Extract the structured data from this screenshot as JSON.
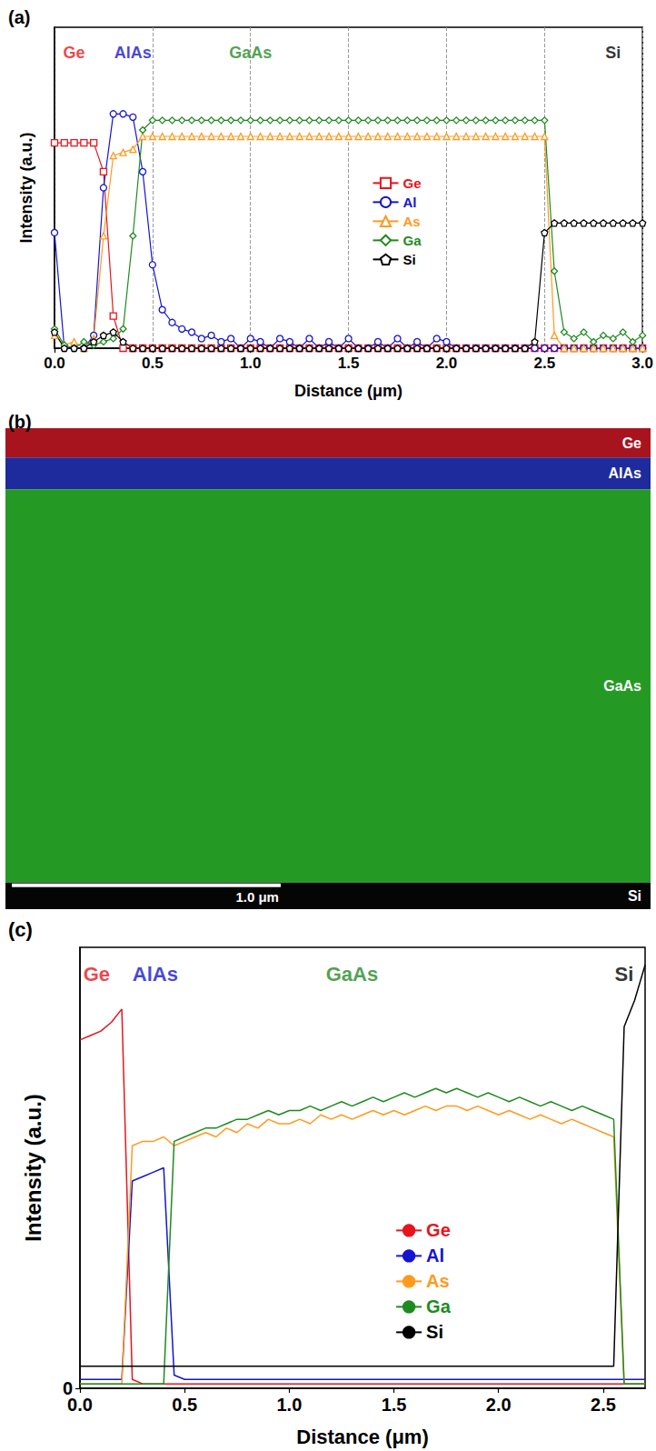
{
  "chart_data": [
    {
      "type": "line",
      "title": "(a)",
      "x_label": "Distance (μm)",
      "y_label": "Intensity (a.u.)",
      "xlim": [
        0,
        3.0
      ],
      "xticks": [
        {
          "value": 0,
          "label": "0.0"
        },
        {
          "value": 0.5,
          "label": "0.5"
        },
        {
          "value": 1,
          "label": "1.0"
        },
        {
          "value": 1.5,
          "label": "1.5"
        },
        {
          "value": 2,
          "label": "2.0"
        },
        {
          "value": 2.5,
          "label": "2.5"
        },
        {
          "value": 3,
          "label": "3.0"
        }
      ],
      "ylim": [
        0,
        1
      ],
      "tick_labels": "x",
      "grid": "x",
      "legend": "right",
      "annotations": [
        {
          "text": "Ge",
          "x": 0.1,
          "color": "#e8141c"
        },
        {
          "text": "AlAs",
          "x": 0.4,
          "color": "#1414d2"
        },
        {
          "text": "GaAs",
          "x": 1.0,
          "color": "#1f8a1f"
        },
        {
          "text": "Si",
          "x": 2.85,
          "color": "#000000"
        }
      ],
      "x": [
        0,
        0.05,
        0.1,
        0.15,
        0.2,
        0.25,
        0.3,
        0.35,
        0.4,
        0.45,
        0.5,
        0.55,
        0.6,
        0.65,
        0.7,
        0.75,
        0.8,
        0.85,
        0.9,
        0.95,
        1,
        1.05,
        1.1,
        1.15,
        1.2,
        1.25,
        1.3,
        1.35,
        1.4,
        1.45,
        1.5,
        1.55,
        1.6,
        1.65,
        1.7,
        1.75,
        1.8,
        1.85,
        1.9,
        1.95,
        2,
        2.05,
        2.1,
        2.15,
        2.2,
        2.25,
        2.3,
        2.35,
        2.4,
        2.45,
        2.5,
        2.55,
        2.6,
        2.65,
        2.7,
        2.75,
        2.8,
        2.85,
        2.9,
        2.95,
        3
      ],
      "series": [
        {
          "name": "Ge",
          "color": "#e8141c",
          "marker": "square",
          "values": [
            0.64,
            0.64,
            0.64,
            0.64,
            0.64,
            0.55,
            0.1,
            0,
            0,
            0,
            0,
            0,
            0,
            0,
            0,
            0,
            0,
            0,
            0,
            0,
            0,
            0,
            0,
            0,
            0,
            0,
            0,
            0,
            0,
            0,
            0,
            0,
            0,
            0,
            0,
            0,
            0,
            0,
            0,
            0,
            0,
            0,
            0,
            0,
            0,
            0,
            0,
            0,
            0,
            0,
            0,
            0,
            0,
            0,
            0,
            0,
            0,
            0,
            0,
            0,
            0
          ]
        },
        {
          "name": "Al",
          "color": "#1414d2",
          "marker": "circle",
          "values": [
            0.36,
            0,
            0,
            0,
            0.04,
            0.5,
            0.73,
            0.73,
            0.72,
            0.55,
            0.26,
            0.12,
            0.08,
            0.06,
            0.05,
            0.03,
            0.04,
            0.02,
            0.03,
            0,
            0.03,
            0.02,
            0,
            0.03,
            0.02,
            0,
            0.03,
            0,
            0.02,
            0,
            0.03,
            0,
            0,
            0.02,
            0,
            0.03,
            0,
            0.02,
            0,
            0.03,
            0.02,
            0,
            0,
            0,
            0,
            0,
            0,
            0,
            0,
            0,
            0,
            0,
            0,
            0,
            0,
            0,
            0,
            0,
            0,
            0,
            0
          ]
        },
        {
          "name": "As",
          "color": "#ff9a1e",
          "marker": "triangle",
          "values": [
            0.04,
            0.01,
            0.02,
            0,
            0.03,
            0.35,
            0.6,
            0.61,
            0.62,
            0.66,
            0.66,
            0.66,
            0.66,
            0.66,
            0.66,
            0.66,
            0.66,
            0.66,
            0.66,
            0.66,
            0.66,
            0.66,
            0.66,
            0.66,
            0.66,
            0.66,
            0.66,
            0.66,
            0.66,
            0.66,
            0.66,
            0.66,
            0.66,
            0.66,
            0.66,
            0.66,
            0.66,
            0.66,
            0.66,
            0.66,
            0.66,
            0.66,
            0.66,
            0.66,
            0.66,
            0.66,
            0.66,
            0.66,
            0.66,
            0.66,
            0.66,
            0.04,
            0,
            0,
            0,
            0,
            0,
            0,
            0,
            0,
            0
          ]
        },
        {
          "name": "Ga",
          "color": "#1f8a1f",
          "marker": "diamond",
          "values": [
            0.06,
            0.01,
            0,
            0.02,
            0.01,
            0.02,
            0.03,
            0.06,
            0.35,
            0.68,
            0.71,
            0.71,
            0.71,
            0.71,
            0.71,
            0.71,
            0.71,
            0.71,
            0.71,
            0.71,
            0.71,
            0.71,
            0.71,
            0.71,
            0.71,
            0.71,
            0.71,
            0.71,
            0.71,
            0.71,
            0.71,
            0.71,
            0.71,
            0.71,
            0.71,
            0.71,
            0.71,
            0.71,
            0.71,
            0.71,
            0.71,
            0.71,
            0.71,
            0.71,
            0.71,
            0.71,
            0.71,
            0.71,
            0.71,
            0.71,
            0.71,
            0.24,
            0.05,
            0.03,
            0.05,
            0.02,
            0.04,
            0.03,
            0.05,
            0.02,
            0.04
          ]
        },
        {
          "name": "Si",
          "color": "#000000",
          "marker": "pentagon",
          "values": [
            0.05,
            0,
            0,
            0,
            0.02,
            0.04,
            0.05,
            0.02,
            0,
            0,
            0,
            0,
            0,
            0,
            0,
            0,
            0,
            0,
            0,
            0,
            0,
            0,
            0,
            0,
            0,
            0,
            0,
            0,
            0,
            0,
            0,
            0,
            0,
            0,
            0,
            0,
            0,
            0,
            0,
            0,
            0,
            0,
            0,
            0,
            0,
            0,
            0,
            0,
            0,
            0.02,
            0.36,
            0.39,
            0.39,
            0.39,
            0.39,
            0.39,
            0.39,
            0.39,
            0.39,
            0.39,
            0.39
          ]
        }
      ]
    },
    {
      "type": "layers",
      "title": "(b)",
      "xlim": [
        0,
        2.4
      ],
      "ylim": [
        0,
        1.81
      ],
      "tick_labels": false,
      "bands": [
        {
          "label": "Ge",
          "color": "#a8141e",
          "top": 0,
          "bottom": 0.11
        },
        {
          "label": "AlAs",
          "color": "#1e2b9c",
          "top": 0.11,
          "bottom": 0.23
        },
        {
          "label": "GaAs",
          "color": "#249a24",
          "top": 0.23,
          "bottom": 1.71
        },
        {
          "label": "Si",
          "color": "#050505",
          "top": 1.71,
          "bottom": 1.81
        }
      ],
      "scale_bar": {
        "length": 1.0,
        "label": "1.0 μm"
      }
    },
    {
      "type": "line",
      "title": "(c)",
      "x_label": "Distance (μm)",
      "y_label": "Intensity (a.u.)",
      "xlim": [
        0,
        2.7
      ],
      "xticks": [
        {
          "value": 0,
          "label": "0.0"
        },
        {
          "value": 0.5,
          "label": "0.5"
        },
        {
          "value": 1,
          "label": "1.0"
        },
        {
          "value": 1.5,
          "label": "1.5"
        },
        {
          "value": 2,
          "label": "2.0"
        },
        {
          "value": 2.5,
          "label": "2.5"
        }
      ],
      "ylim": [
        0,
        1
      ],
      "yticks": [
        0
      ],
      "grid": false,
      "legend": "right",
      "annotations": [
        {
          "text": "Ge",
          "x": 0.08,
          "color": "#e8141c"
        },
        {
          "text": "AlAs",
          "x": 0.36,
          "color": "#1414d2"
        },
        {
          "text": "GaAs",
          "x": 1.3,
          "color": "#1f8a1f"
        },
        {
          "text": "Si",
          "x": 2.6,
          "color": "#000000"
        }
      ],
      "x": [
        0,
        0.05,
        0.1,
        0.15,
        0.2,
        0.25,
        0.3,
        0.35,
        0.4,
        0.45,
        0.5,
        0.55,
        0.6,
        0.65,
        0.7,
        0.75,
        0.8,
        0.85,
        0.9,
        0.95,
        1,
        1.05,
        1.1,
        1.15,
        1.2,
        1.25,
        1.3,
        1.35,
        1.4,
        1.45,
        1.5,
        1.55,
        1.6,
        1.65,
        1.7,
        1.75,
        1.8,
        1.85,
        1.9,
        1.95,
        2,
        2.05,
        2.1,
        2.15,
        2.2,
        2.25,
        2.3,
        2.35,
        2.4,
        2.45,
        2.5,
        2.55,
        2.6,
        2.65,
        2.7
      ],
      "series": [
        {
          "name": "Ge",
          "color": "#e8141c",
          "values": [
            0.79,
            0.8,
            0.81,
            0.83,
            0.86,
            0.02,
            0.01,
            0.01,
            0.01,
            0.01,
            0.01,
            0.01,
            0.01,
            0.01,
            0.01,
            0.01,
            0.01,
            0.01,
            0.01,
            0.01,
            0.01,
            0.01,
            0.01,
            0.01,
            0.01,
            0.01,
            0.01,
            0.01,
            0.01,
            0.01,
            0.01,
            0.01,
            0.01,
            0.01,
            0.01,
            0.01,
            0.01,
            0.01,
            0.01,
            0.01,
            0.01,
            0.01,
            0.01,
            0.01,
            0.01,
            0.01,
            0.01,
            0.01,
            0.01,
            0.01,
            0.01,
            0.01,
            0.01,
            0.01,
            0.01
          ]
        },
        {
          "name": "Al",
          "color": "#1414d2",
          "values": [
            0.02,
            0.02,
            0.02,
            0.02,
            0.02,
            0.47,
            0.48,
            0.49,
            0.5,
            0.03,
            0.02,
            0.02,
            0.02,
            0.02,
            0.02,
            0.02,
            0.02,
            0.02,
            0.02,
            0.02,
            0.02,
            0.02,
            0.02,
            0.02,
            0.02,
            0.02,
            0.02,
            0.02,
            0.02,
            0.02,
            0.02,
            0.02,
            0.02,
            0.02,
            0.02,
            0.02,
            0.02,
            0.02,
            0.02,
            0.02,
            0.02,
            0.02,
            0.02,
            0.02,
            0.02,
            0.02,
            0.02,
            0.02,
            0.02,
            0.02,
            0.02,
            0.02,
            0.02,
            0.02,
            0.02
          ]
        },
        {
          "name": "As",
          "color": "#ff9a1e",
          "values": [
            0.01,
            0.01,
            0.01,
            0.01,
            0.01,
            0.55,
            0.56,
            0.56,
            0.57,
            0.55,
            0.56,
            0.57,
            0.58,
            0.57,
            0.59,
            0.58,
            0.6,
            0.59,
            0.61,
            0.6,
            0.6,
            0.61,
            0.6,
            0.62,
            0.61,
            0.62,
            0.61,
            0.62,
            0.63,
            0.62,
            0.63,
            0.62,
            0.63,
            0.64,
            0.63,
            0.64,
            0.64,
            0.63,
            0.64,
            0.63,
            0.62,
            0.63,
            0.62,
            0.61,
            0.62,
            0.61,
            0.6,
            0.61,
            0.6,
            0.59,
            0.58,
            0.57,
            0.01,
            0.01,
            0.01
          ]
        },
        {
          "name": "Ga",
          "color": "#1f8a1f",
          "values": [
            0.01,
            0.01,
            0.01,
            0.01,
            0.01,
            0.01,
            0.01,
            0.01,
            0.01,
            0.56,
            0.57,
            0.58,
            0.59,
            0.59,
            0.6,
            0.61,
            0.61,
            0.62,
            0.63,
            0.62,
            0.63,
            0.63,
            0.64,
            0.63,
            0.64,
            0.65,
            0.64,
            0.65,
            0.66,
            0.65,
            0.66,
            0.67,
            0.66,
            0.67,
            0.68,
            0.67,
            0.68,
            0.67,
            0.66,
            0.67,
            0.66,
            0.65,
            0.66,
            0.65,
            0.64,
            0.65,
            0.64,
            0.63,
            0.64,
            0.63,
            0.62,
            0.61,
            0.01,
            0.01,
            0.01
          ]
        },
        {
          "name": "Si",
          "color": "#000000",
          "values": [
            0.05,
            0.05,
            0.05,
            0.05,
            0.05,
            0.05,
            0.05,
            0.05,
            0.05,
            0.05,
            0.05,
            0.05,
            0.05,
            0.05,
            0.05,
            0.05,
            0.05,
            0.05,
            0.05,
            0.05,
            0.05,
            0.05,
            0.05,
            0.05,
            0.05,
            0.05,
            0.05,
            0.05,
            0.05,
            0.05,
            0.05,
            0.05,
            0.05,
            0.05,
            0.05,
            0.05,
            0.05,
            0.05,
            0.05,
            0.05,
            0.05,
            0.05,
            0.05,
            0.05,
            0.05,
            0.05,
            0.05,
            0.05,
            0.05,
            0.05,
            0.05,
            0.05,
            0.82,
            0.88,
            0.96
          ]
        }
      ]
    }
  ]
}
